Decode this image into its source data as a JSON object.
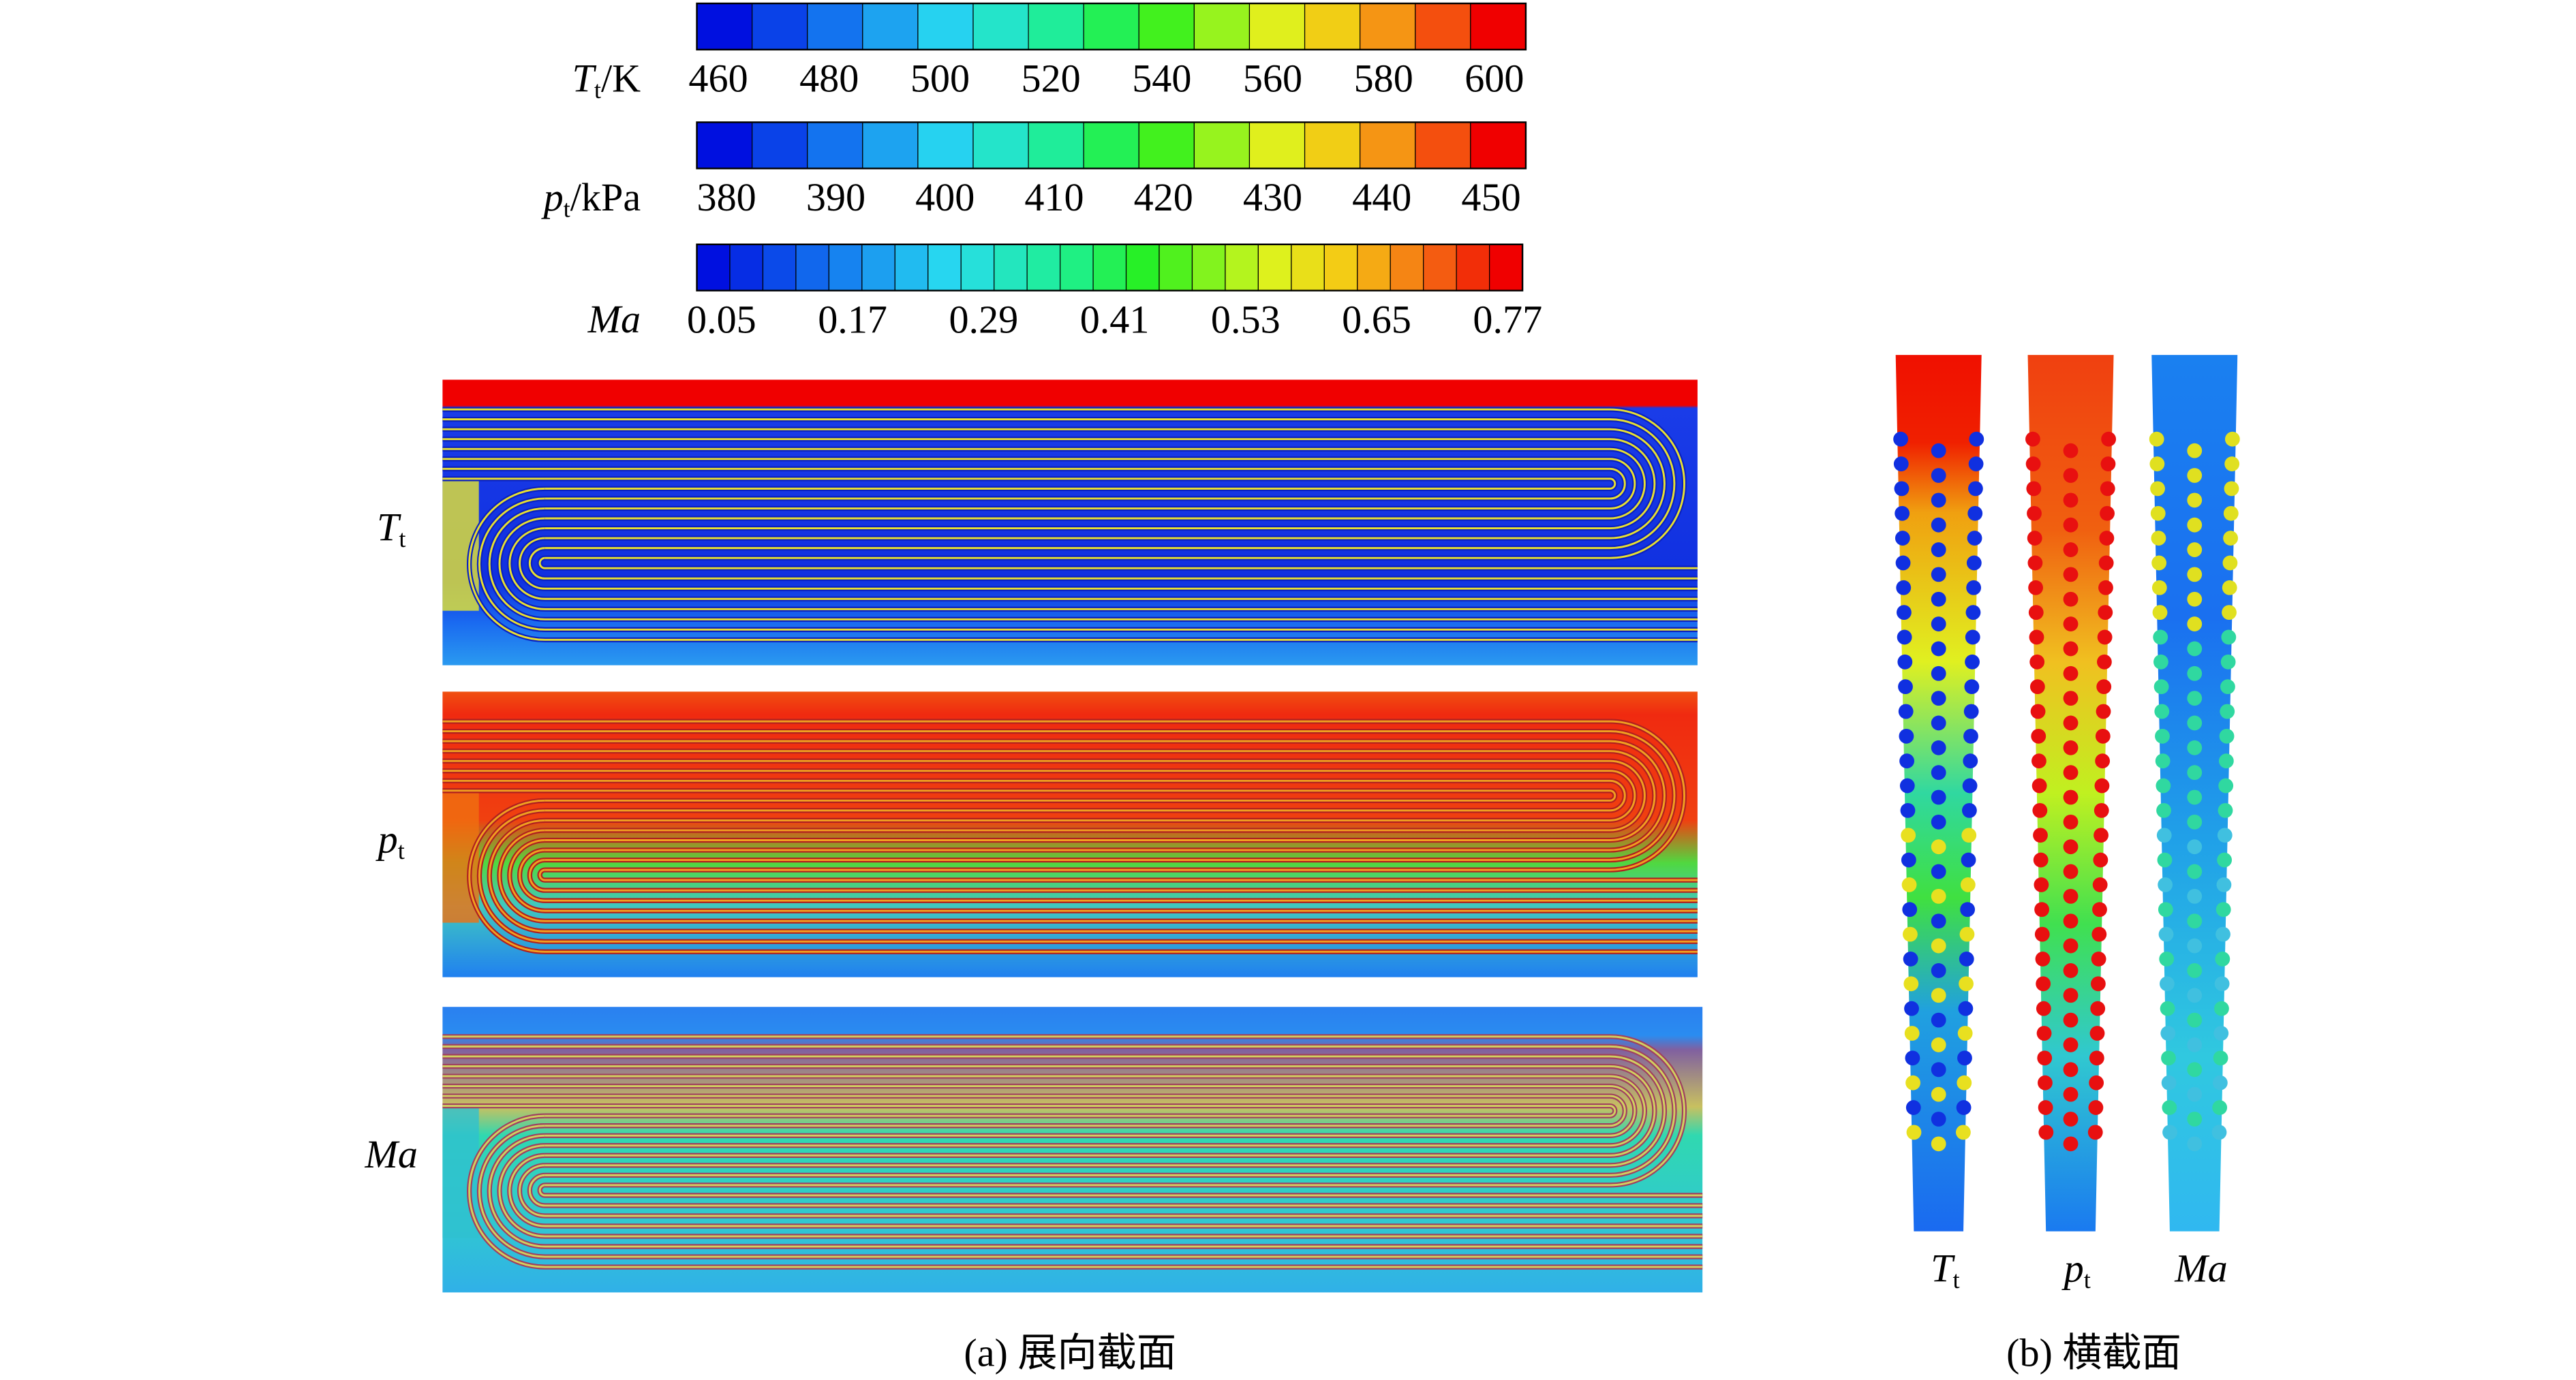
{
  "colorbars": [
    {
      "symbol": "T",
      "subscript": "t",
      "unit": "/K",
      "ticks": [
        460,
        480,
        500,
        520,
        540,
        560,
        580,
        600
      ]
    },
    {
      "symbol": "p",
      "subscript": "t",
      "unit": "/kPa",
      "ticks": [
        380,
        390,
        400,
        410,
        420,
        430,
        440,
        450
      ]
    },
    {
      "symbol": "Ma",
      "ticks": [
        0.05,
        0.17,
        0.29,
        0.41,
        0.53,
        0.65,
        0.77
      ]
    }
  ],
  "spanwise_panels": [
    {
      "symbol": "T",
      "subscript": "t"
    },
    {
      "symbol": "p",
      "subscript": "t"
    },
    {
      "symbol": "Ma"
    }
  ],
  "cross_panels": [
    {
      "symbol": "T",
      "subscript": "t"
    },
    {
      "symbol": "p",
      "subscript": "t"
    },
    {
      "symbol": "Ma"
    }
  ],
  "captions": [
    "(a) 展向截面",
    "(b) 横截面"
  ]
}
